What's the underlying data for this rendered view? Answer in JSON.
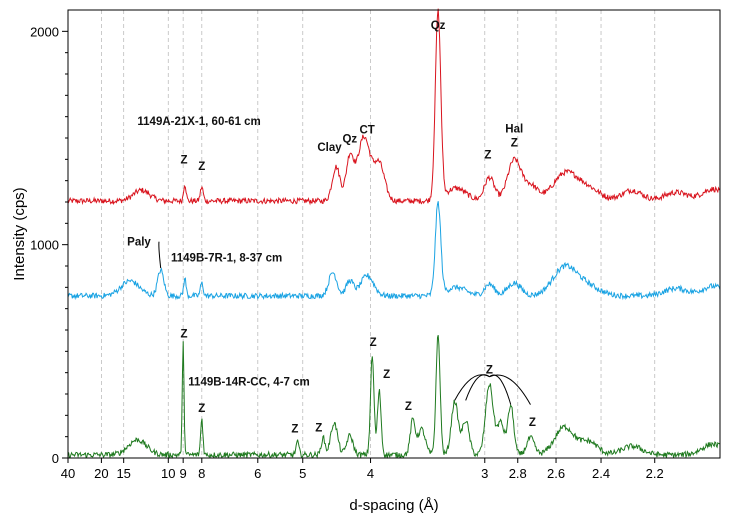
{
  "chart_data": {
    "type": "line",
    "xlabel": "d-spacing (Å)",
    "ylabel": "Intensity (cps)",
    "x_axis_note": "d-spacing axis (nonlinear, equal steps in 2-theta)",
    "x_ticks": [
      "40",
      "20",
      "15",
      "10",
      "9",
      "8",
      "6",
      "5",
      "4",
      "3",
      "2.8",
      "2.6",
      "2.4",
      "2.2"
    ],
    "x_tick_values": [
      40,
      20,
      15,
      10,
      9,
      8,
      6,
      5,
      4,
      3,
      2.8,
      2.6,
      2.4,
      2.2
    ],
    "xlim": [
      40,
      2.0
    ],
    "y_ticks": [
      "0",
      "1000",
      "2000"
    ],
    "ylim": [
      0,
      2100
    ],
    "grid": "vertical dashed at x ticks",
    "series": [
      {
        "name": "1149A-21X-1, 60-61 cm",
        "color": "#d9141e",
        "baseline": 1205,
        "peaks": [
          {
            "d": 12.5,
            "h": 50,
            "w": 2.5
          },
          {
            "d": 8.9,
            "h": 80,
            "w": 0.12
          },
          {
            "d": 8.0,
            "h": 65,
            "w": 0.12
          },
          {
            "d": 4.45,
            "h": 160,
            "w": 0.14
          },
          {
            "d": 4.26,
            "h": 200,
            "w": 0.12
          },
          {
            "d": 4.08,
            "h": 300,
            "w": 0.2
          },
          {
            "d": 3.9,
            "h": 170,
            "w": 0.15
          },
          {
            "d": 3.34,
            "h": 880,
            "w": 0.05
          },
          {
            "d": 3.2,
            "h": 60,
            "w": 0.2
          },
          {
            "d": 2.97,
            "h": 110,
            "w": 0.08
          },
          {
            "d": 2.82,
            "h": 190,
            "w": 0.1
          },
          {
            "d": 2.73,
            "h": 70,
            "w": 0.1
          },
          {
            "d": 2.56,
            "h": 120,
            "w": 0.15
          },
          {
            "d": 2.46,
            "h": 60,
            "w": 0.15
          },
          {
            "d": 2.28,
            "h": 50,
            "w": 0.1
          },
          {
            "d": 2.13,
            "h": 40,
            "w": 0.1
          },
          {
            "d": 2.02,
            "h": 55,
            "w": 0.08
          }
        ]
      },
      {
        "name": "1149B-7R-1, 8-37 cm",
        "color": "#1aa3e3",
        "baseline": 760,
        "peaks": [
          {
            "d": 14.0,
            "h": 70,
            "w": 3.5
          },
          {
            "d": 10.6,
            "h": 120,
            "w": 0.6
          },
          {
            "d": 8.9,
            "h": 80,
            "w": 0.12
          },
          {
            "d": 8.0,
            "h": 60,
            "w": 0.12
          },
          {
            "d": 4.5,
            "h": 110,
            "w": 0.15
          },
          {
            "d": 4.26,
            "h": 70,
            "w": 0.12
          },
          {
            "d": 4.04,
            "h": 95,
            "w": 0.2
          },
          {
            "d": 3.34,
            "h": 430,
            "w": 0.05
          },
          {
            "d": 3.2,
            "h": 40,
            "w": 0.2
          },
          {
            "d": 2.97,
            "h": 55,
            "w": 0.08
          },
          {
            "d": 2.82,
            "h": 60,
            "w": 0.1
          },
          {
            "d": 2.56,
            "h": 130,
            "w": 0.15
          },
          {
            "d": 2.46,
            "h": 45,
            "w": 0.15
          },
          {
            "d": 2.13,
            "h": 35,
            "w": 0.1
          },
          {
            "d": 2.02,
            "h": 45,
            "w": 0.08
          }
        ]
      },
      {
        "name": "1149B-14R-CC, 4-7 cm",
        "color": "#1f7a1f",
        "baseline": 15,
        "peaks": [
          {
            "d": 13.0,
            "h": 70,
            "w": 3.0
          },
          {
            "d": 9.0,
            "h": 520,
            "w": 0.06
          },
          {
            "d": 8.0,
            "h": 170,
            "w": 0.08
          },
          {
            "d": 5.1,
            "h": 60,
            "w": 0.05
          },
          {
            "d": 4.65,
            "h": 80,
            "w": 0.06
          },
          {
            "d": 4.48,
            "h": 150,
            "w": 0.12
          },
          {
            "d": 4.26,
            "h": 90,
            "w": 0.1
          },
          {
            "d": 3.98,
            "h": 460,
            "w": 0.04
          },
          {
            "d": 3.9,
            "h": 300,
            "w": 0.04
          },
          {
            "d": 3.56,
            "h": 160,
            "w": 0.05
          },
          {
            "d": 3.48,
            "h": 120,
            "w": 0.08
          },
          {
            "d": 3.34,
            "h": 560,
            "w": 0.035
          },
          {
            "d": 3.21,
            "h": 250,
            "w": 0.06
          },
          {
            "d": 3.13,
            "h": 160,
            "w": 0.06
          },
          {
            "d": 2.97,
            "h": 330,
            "w": 0.06
          },
          {
            "d": 2.9,
            "h": 150,
            "w": 0.05
          },
          {
            "d": 2.84,
            "h": 230,
            "w": 0.04
          },
          {
            "d": 2.73,
            "h": 80,
            "w": 0.05
          },
          {
            "d": 2.56,
            "h": 130,
            "w": 0.12
          },
          {
            "d": 2.45,
            "h": 60,
            "w": 0.1
          },
          {
            "d": 2.28,
            "h": 40,
            "w": 0.1
          },
          {
            "d": 2.02,
            "h": 50,
            "w": 0.08
          }
        ]
      }
    ],
    "annotations": [
      {
        "text": "Qz",
        "d": 3.34,
        "y": 2010
      },
      {
        "text": "CT",
        "d": 4.04,
        "y": 1520
      },
      {
        "text": "Qz",
        "d": 4.26,
        "y": 1480
      },
      {
        "text": "Clay",
        "d": 4.55,
        "y": 1440
      },
      {
        "text": "Hal",
        "d": 2.82,
        "y": 1525
      },
      {
        "text": "Z",
        "d": 2.82,
        "y": 1460
      },
      {
        "text": "Z",
        "d": 2.98,
        "y": 1405
      },
      {
        "text": "Z",
        "d": 8.95,
        "y": 1380
      },
      {
        "text": "Z",
        "d": 8.0,
        "y": 1350
      },
      {
        "text": "Paly",
        "d": 12.8,
        "y": 995
      },
      {
        "text": "Z",
        "d": 8.95,
        "y": 565
      },
      {
        "text": "Z",
        "d": 3.97,
        "y": 525
      },
      {
        "text": "Z",
        "d": 3.82,
        "y": 375
      },
      {
        "text": "Z",
        "d": 2.97,
        "y": 395
      },
      {
        "text": "Z",
        "d": 8.0,
        "y": 215
      },
      {
        "text": "Z",
        "d": 3.6,
        "y": 225
      },
      {
        "text": "Z",
        "d": 5.15,
        "y": 120
      },
      {
        "text": "Z",
        "d": 4.72,
        "y": 125
      },
      {
        "text": "Z",
        "d": 2.72,
        "y": 150
      }
    ],
    "sample_labels": [
      {
        "text": "1149A-21X-1, 60-61 cm",
        "d": 13.0,
        "y": 1560
      },
      {
        "text": "1149B-7R-1, 8-37 cm",
        "d": 9.8,
        "y": 920
      },
      {
        "text": "1149B-14R-CC, 4-7 cm",
        "d": 8.7,
        "y": 340
      }
    ]
  }
}
